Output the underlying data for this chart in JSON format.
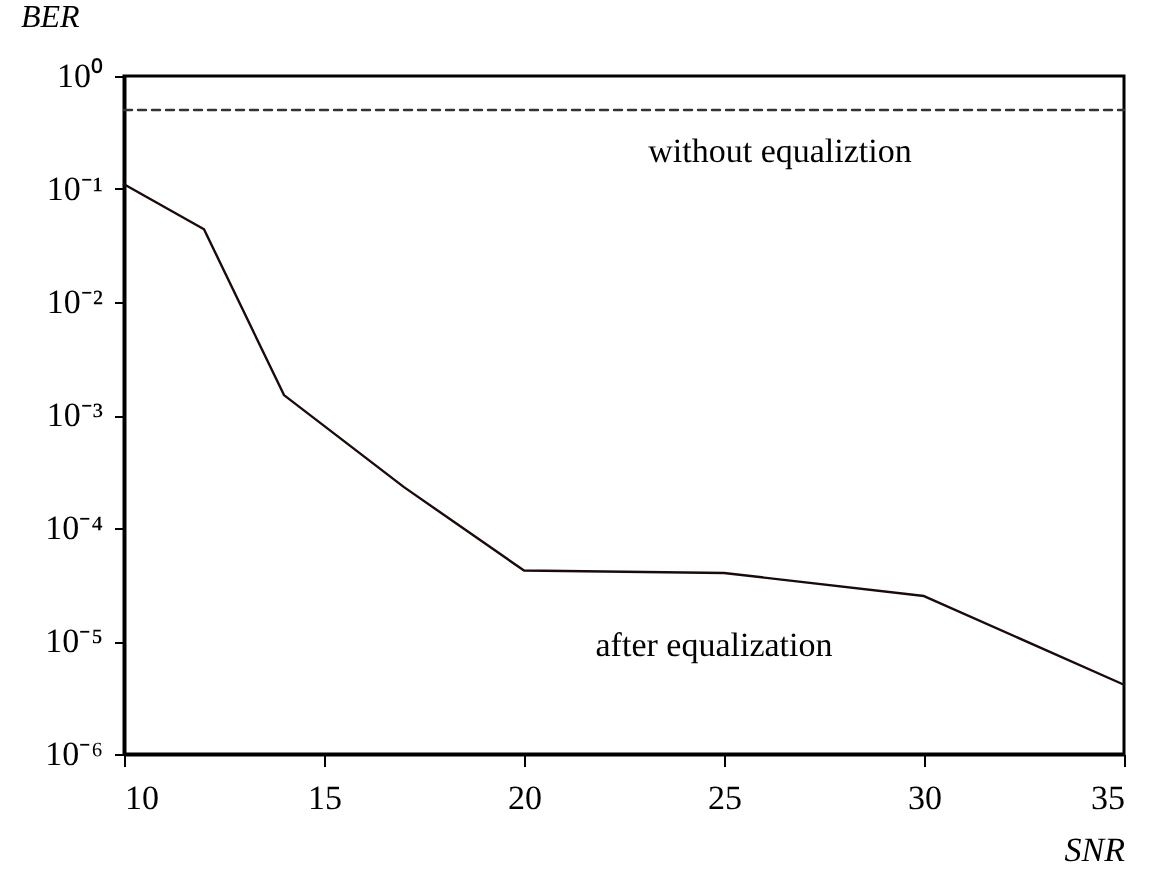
{
  "chart_data": {
    "type": "line",
    "xlabel": "SNR",
    "ylabel": "BER",
    "log": true,
    "grid": false,
    "xlim": [
      10,
      35
    ],
    "xticks": [
      10,
      15,
      20,
      25,
      30,
      35
    ],
    "ylim": [
      1e-06,
      1
    ],
    "yticks": [
      {
        "value": 1,
        "label": "10⁰"
      },
      {
        "value": 0.1,
        "label": "10⁻¹"
      },
      {
        "value": 0.01,
        "label": "10⁻²"
      },
      {
        "value": 0.001,
        "label": "10⁻³"
      },
      {
        "value": 0.0001,
        "label": "10⁻⁴"
      },
      {
        "value": 1e-05,
        "label": "10⁻⁵"
      },
      {
        "value": 1e-06,
        "label": "10⁻⁶"
      }
    ],
    "series": [
      {
        "color": "#1a0a0a",
        "line_style": "solid",
        "x": [
          10,
          12,
          14,
          17,
          20,
          25,
          30,
          35
        ],
        "values": [
          0.11,
          0.044,
          0.0015,
          0.00023,
          4.2e-05,
          4e-05,
          2.5e-05,
          4.1e-06
        ]
      },
      {
        "color": "#333333",
        "line_style": "dashed",
        "x": [
          10,
          35
        ],
        "values": [
          0.5,
          0.5
        ]
      }
    ],
    "annotations": [
      "without equaliztion",
      "after equalization"
    ]
  }
}
